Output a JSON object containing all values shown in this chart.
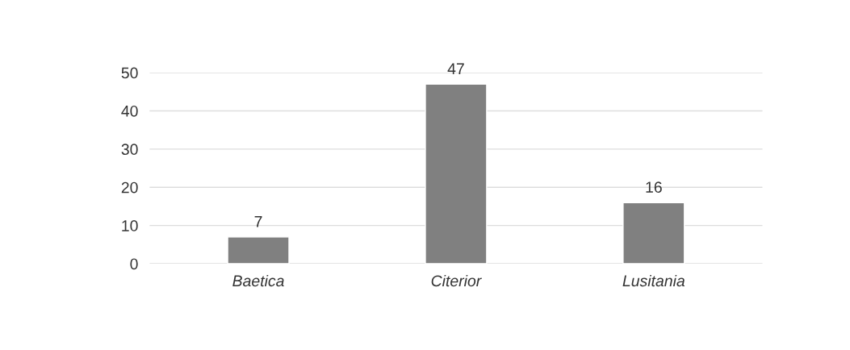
{
  "chart_data": {
    "type": "bar",
    "categories": [
      "Baetica",
      "Citerior",
      "Lusitania"
    ],
    "values": [
      7,
      47,
      16
    ],
    "color": "#808080",
    "ylim": [
      0,
      50
    ],
    "yticks": [
      0,
      10,
      20,
      30,
      40,
      50
    ],
    "grid": "y",
    "data_labels": true
  }
}
